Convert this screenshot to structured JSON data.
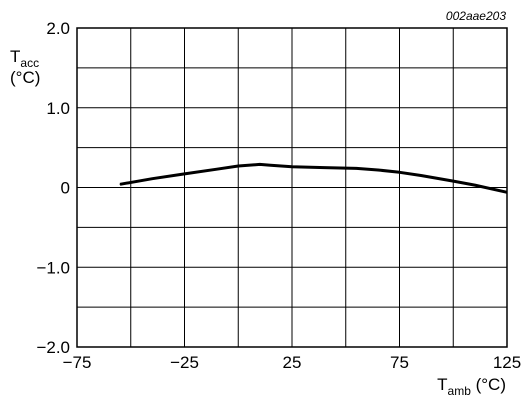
{
  "figure_id": "002aae203",
  "chart_data": {
    "type": "line",
    "title": "",
    "xlabel": {
      "main": "T",
      "sub": "amb",
      "unit": " (°C)"
    },
    "ylabel": {
      "main": "T",
      "sub": "acc",
      "unit": "(°C)"
    },
    "xlim": [
      -75,
      125
    ],
    "ylim": [
      -2.0,
      2.0
    ],
    "grid": true,
    "x_gridlines": [
      -75,
      -50,
      -25,
      0,
      25,
      50,
      75,
      100,
      125
    ],
    "y_gridlines": [
      -2.0,
      -1.5,
      -1.0,
      -0.5,
      0,
      0.5,
      1.0,
      1.5,
      2.0
    ],
    "x_ticks": [
      {
        "value": -75,
        "label": "−75"
      },
      {
        "value": -25,
        "label": "−25"
      },
      {
        "value": 25,
        "label": "25"
      },
      {
        "value": 75,
        "label": "75"
      },
      {
        "value": 125,
        "label": "125"
      }
    ],
    "y_ticks": [
      {
        "value": 2.0,
        "label": "2.0"
      },
      {
        "value": 1.0,
        "label": "1.0"
      },
      {
        "value": 0,
        "label": "0"
      },
      {
        "value": -1.0,
        "label": "−1.0"
      },
      {
        "value": -2.0,
        "label": "−2.0"
      }
    ],
    "series": [
      {
        "x": [
          -55,
          -40,
          -25,
          -10,
          0,
          10,
          15,
          25,
          40,
          55,
          65,
          75,
          85,
          100,
          110,
          125
        ],
        "y": [
          0.04,
          0.11,
          0.17,
          0.23,
          0.27,
          0.29,
          0.28,
          0.26,
          0.25,
          0.24,
          0.22,
          0.19,
          0.15,
          0.08,
          0.03,
          -0.06
        ]
      }
    ],
    "colors": {
      "line": "#000000",
      "grid": "#000000",
      "background": "#ffffff"
    }
  }
}
